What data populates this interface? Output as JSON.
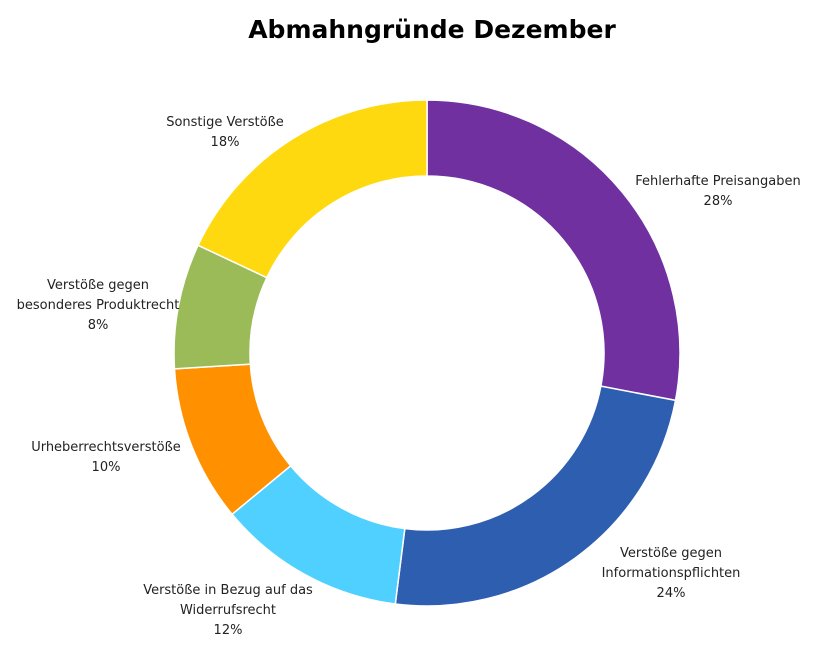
{
  "chart_data": {
    "type": "pie",
    "title": "Abmahngründe Dezember",
    "donut": true,
    "categories": [
      "Fehlerhafte Preisangaben",
      "Verstöße gegen Informationspflichten",
      "Verstöße in Bezug auf das Widerrufsrecht",
      "Urheberrechtsverstöße",
      "Verstöße gegen besonderes Produktrecht",
      "Sonstige Verstöße"
    ],
    "values": [
      28,
      24,
      12,
      10,
      8,
      18
    ],
    "value_labels": [
      "28%",
      "24%",
      "12%",
      "10%",
      "8%",
      "18%"
    ],
    "label_lines": [
      [
        "Fehlerhafte Preisangaben"
      ],
      [
        "Verstöße gegen",
        "Informationspflichten"
      ],
      [
        "Verstöße in Bezug auf das",
        "Widerrufsrecht"
      ],
      [
        "Urheberrechtsverstöße"
      ],
      [
        "Verstöße gegen",
        "besonderes Produktrecht"
      ],
      [
        "Sonstige Verstöße"
      ]
    ],
    "colors": [
      "#7030A0",
      "#2E5EB0",
      "#4FD0FF",
      "#FF9100",
      "#9BBB59",
      "#FFD90F"
    ],
    "legend": "none"
  }
}
